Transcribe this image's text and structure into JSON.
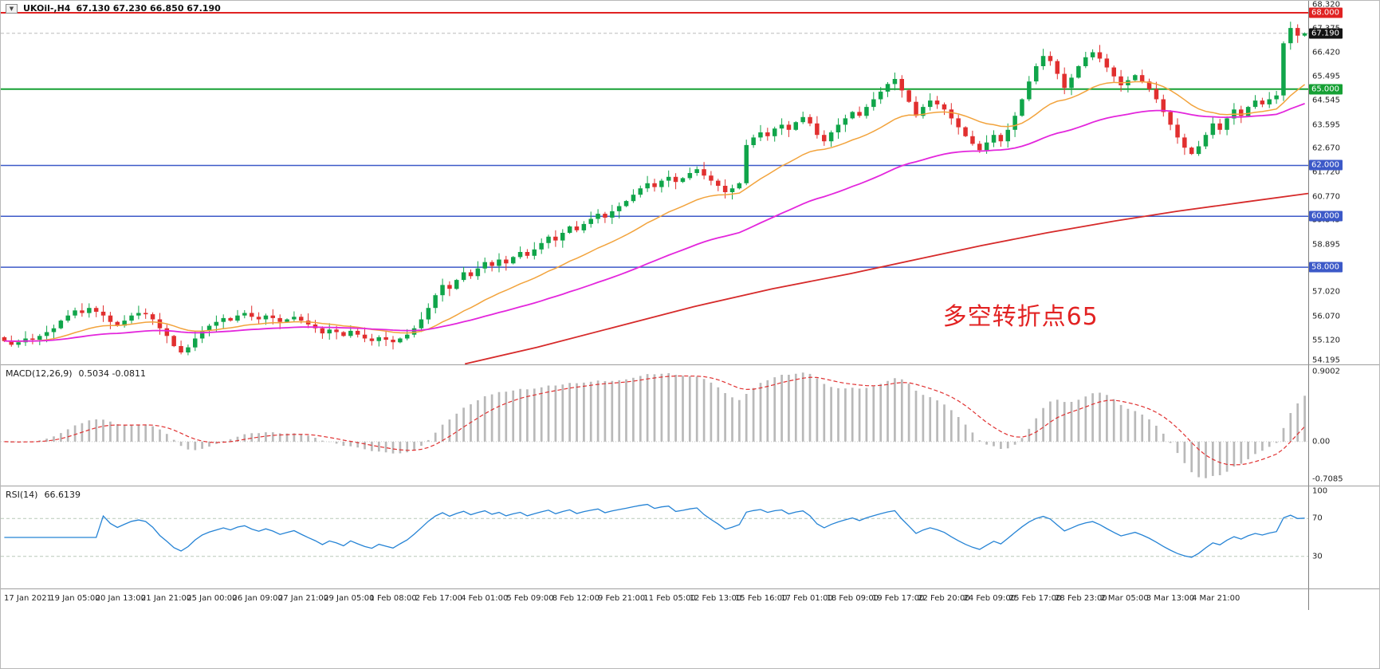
{
  "header": {
    "symbol_period": "UKOil-,H4",
    "quote": "67.130 67.230 66.850 67.190"
  },
  "colors": {
    "bull": "#10a54a",
    "bear": "#e12f2f",
    "panel_border": "#9e9e9e"
  },
  "chart_data": {
    "type": "candlestick",
    "symbol": "UKOil-",
    "timeframe": "H4",
    "quote": {
      "open": 67.13,
      "high": 67.23,
      "low": 66.85,
      "close": 67.19
    },
    "price_range": [
      54.18,
      68.47
    ],
    "price_axis": {
      "ticks": [
        "68.320",
        "67.375",
        "66.420",
        "65.495",
        "64.545",
        "63.595",
        "62.670",
        "61.720",
        "60.770",
        "59.845",
        "58.895",
        "57.945",
        "57.020",
        "56.070",
        "55.120",
        "54.195"
      ]
    },
    "levels": [
      {
        "price": 68.0,
        "label": "68.000",
        "color": "#e02222",
        "width": 2
      },
      {
        "price": 65.0,
        "label": "65.000",
        "color": "#16a034",
        "width": 2
      },
      {
        "price": 62.0,
        "label": "62.000",
        "color": "#3c59c8",
        "width": 1.5
      },
      {
        "price": 60.0,
        "label": "60.000",
        "color": "#3c59c8",
        "width": 1.5
      },
      {
        "price": 58.0,
        "label": "58.000",
        "color": "#3c59c8",
        "width": 1.5
      }
    ],
    "current_price": {
      "value": 67.19,
      "label": "67.190",
      "badge_bg": "#141414"
    },
    "annotation": {
      "text": "多空转折点65",
      "color": "#e22222",
      "x": 0.78,
      "y": 0.862
    },
    "first_open": 55.25,
    "closes": [
      55.1,
      54.95,
      55.05,
      55.2,
      55.15,
      55.3,
      55.45,
      55.6,
      55.9,
      56.1,
      56.3,
      56.2,
      56.4,
      56.25,
      56.1,
      55.85,
      55.7,
      55.9,
      56.1,
      56.2,
      56.15,
      55.95,
      55.6,
      55.3,
      54.9,
      54.65,
      54.85,
      55.2,
      55.5,
      55.7,
      55.85,
      56.0,
      55.9,
      56.1,
      56.2,
      56.05,
      55.95,
      56.1,
      56.0,
      55.85,
      55.95,
      56.05,
      55.9,
      55.75,
      55.6,
      55.4,
      55.55,
      55.45,
      55.3,
      55.5,
      55.35,
      55.2,
      55.1,
      55.25,
      55.15,
      55.05,
      55.2,
      55.35,
      55.6,
      55.95,
      56.4,
      56.9,
      57.3,
      57.15,
      57.5,
      57.8,
      57.65,
      57.95,
      58.2,
      58.05,
      58.3,
      58.15,
      58.4,
      58.6,
      58.45,
      58.7,
      58.95,
      59.2,
      59.05,
      59.35,
      59.6,
      59.45,
      59.7,
      59.9,
      60.1,
      59.95,
      60.2,
      60.4,
      60.6,
      60.85,
      61.1,
      61.3,
      61.15,
      61.4,
      61.55,
      61.35,
      61.5,
      61.7,
      61.85,
      61.6,
      61.4,
      61.2,
      60.95,
      61.1,
      61.3,
      62.8,
      63.1,
      63.3,
      63.15,
      63.45,
      63.6,
      63.4,
      63.7,
      63.9,
      63.65,
      63.2,
      62.95,
      63.3,
      63.6,
      63.85,
      64.1,
      63.95,
      64.3,
      64.6,
      64.9,
      65.2,
      65.4,
      64.95,
      64.5,
      63.95,
      64.3,
      64.55,
      64.4,
      64.2,
      63.85,
      63.5,
      63.15,
      62.85,
      62.6,
      62.9,
      63.2,
      62.95,
      63.4,
      63.95,
      64.6,
      65.3,
      65.9,
      66.3,
      66.1,
      65.6,
      65.05,
      65.45,
      65.9,
      66.25,
      66.45,
      66.2,
      65.85,
      65.5,
      65.15,
      65.35,
      65.55,
      65.3,
      65.0,
      64.6,
      64.1,
      63.6,
      63.1,
      62.7,
      62.45,
      62.75,
      63.2,
      63.65,
      63.4,
      63.85,
      64.2,
      63.95,
      64.3,
      64.55,
      64.4,
      64.6,
      64.75,
      66.8,
      67.4,
      67.1,
      67.19
    ],
    "indicators": {
      "ma_fast": {
        "type": "ema",
        "period": 20,
        "color": "#f2a33c"
      },
      "ma_mid": {
        "type": "ema",
        "period": 55,
        "color": "#e326dc"
      },
      "ma_slow": {
        "type": "polyline",
        "color": "#d62a2a",
        "points": [
          [
            0.355,
            54.2
          ],
          [
            0.41,
            54.85
          ],
          [
            0.47,
            55.65
          ],
          [
            0.53,
            56.45
          ],
          [
            0.59,
            57.15
          ],
          [
            0.65,
            57.75
          ],
          [
            0.7,
            58.3
          ],
          [
            0.75,
            58.85
          ],
          [
            0.8,
            59.35
          ],
          [
            0.85,
            59.8
          ],
          [
            0.9,
            60.2
          ],
          [
            0.95,
            60.55
          ],
          [
            1.0,
            60.9
          ]
        ]
      }
    },
    "macd": {
      "title": "MACD(12,26,9)",
      "values": "0.5034 -0.0811",
      "fast": 12,
      "slow": 26,
      "signal": 9,
      "hist_color": "#b9b9b9",
      "signal_color": "#e03131",
      "axis": {
        "top": "0.9002",
        "zero": "0.00",
        "bottom": "-0.7085"
      }
    },
    "rsi": {
      "title": "RSI(14)",
      "value": "66.6139",
      "period": 14,
      "color": "#2583d5",
      "levels": [
        70,
        30
      ],
      "axis": [
        "100",
        "70",
        "30"
      ]
    },
    "time_labels": [
      "17 Jan 2021",
      "19 Jan 05:00",
      "20 Jan 13:00",
      "21 Jan 21:00",
      "25 Jan 00:00",
      "26 Jan 09:00",
      "27 Jan 21:00",
      "29 Jan 05:00",
      "1 Feb 08:00",
      "2 Feb 17:00",
      "4 Feb 01:00",
      "5 Feb 09:00",
      "8 Feb 12:00",
      "9 Feb 21:00",
      "11 Feb 05:00",
      "12 Feb 13:00",
      "15 Feb 16:00",
      "17 Feb 01:00",
      "18 Feb 09:00",
      "19 Feb 17:00",
      "22 Feb 20:00",
      "24 Feb 09:00",
      "25 Feb 17:00",
      "28 Feb 23:00",
      "2 Mar 05:00",
      "3 Mar 13:00",
      "4 Mar 21:00"
    ]
  }
}
